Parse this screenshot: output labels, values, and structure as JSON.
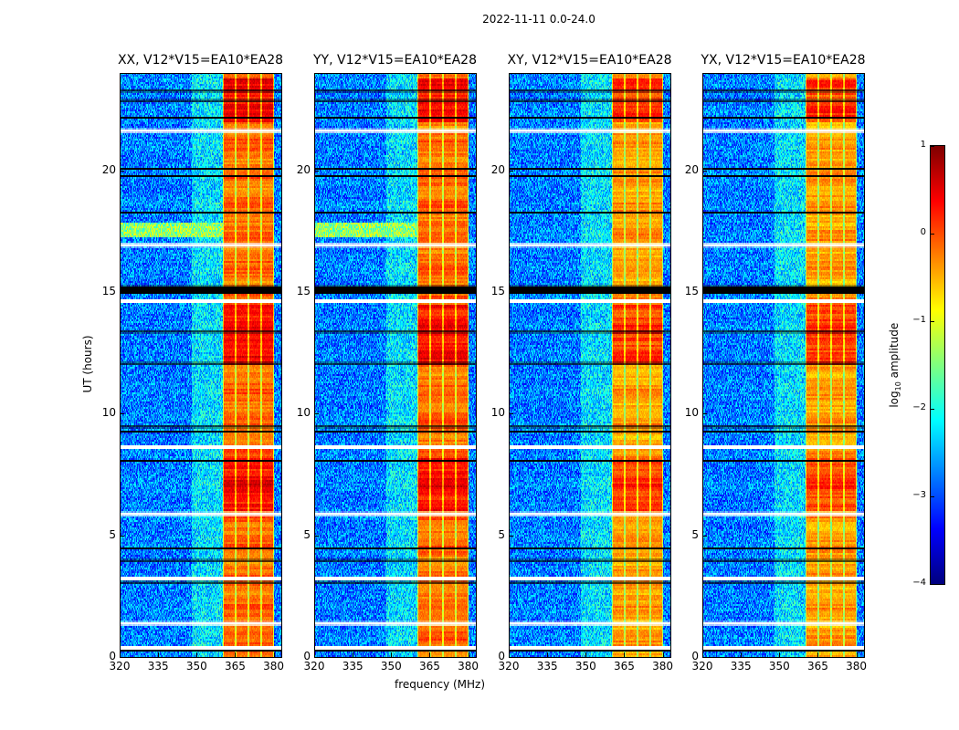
{
  "chart_data": {
    "type": "heatmap",
    "title": "2022-11-11 0.0-24.0",
    "xlabel": "frequency (MHz)",
    "ylabel": "UT (hours)",
    "xlim": [
      320,
      383
    ],
    "ylim": [
      0,
      24
    ],
    "xticks": [
      "320",
      "335",
      "350",
      "365",
      "380"
    ],
    "yticks": [
      "0",
      "5",
      "10",
      "15",
      "20"
    ],
    "colormap": "jet",
    "panels": [
      {
        "title": "XX, V12*V15=EA10*EA28",
        "bright_band_mhz": [
          360,
          380
        ]
      },
      {
        "title": "YY, V12*V15=EA10*EA28",
        "bright_band_mhz": [
          360,
          380
        ]
      },
      {
        "title": "XY, V12*V15=EA10*EA28",
        "bright_band_mhz": [
          360,
          380
        ]
      },
      {
        "title": "YX, V12*V15=EA10*EA28",
        "bright_band_mhz": [
          360,
          380
        ]
      }
    ],
    "colorbar": {
      "label": "log10 amplitude",
      "label_main": "log",
      "label_sub": "10",
      "label_rest": " amplitude",
      "range": [
        -4,
        1
      ],
      "ticks": [
        "1",
        "0",
        "−1",
        "−2",
        "−3",
        "−4"
      ]
    },
    "flagged_hours_blank": [
      0.45,
      1.45,
      3.3,
      5.95,
      8.7,
      14.7,
      17.0,
      21.7
    ],
    "flagged_hours_black": [
      0.3,
      3.1,
      4.0,
      4.5,
      8.1,
      9.3,
      9.5,
      12.1,
      13.4,
      15.0,
      15.1,
      18.3,
      19.8,
      20.1,
      22.2,
      22.9,
      23.3
    ]
  }
}
